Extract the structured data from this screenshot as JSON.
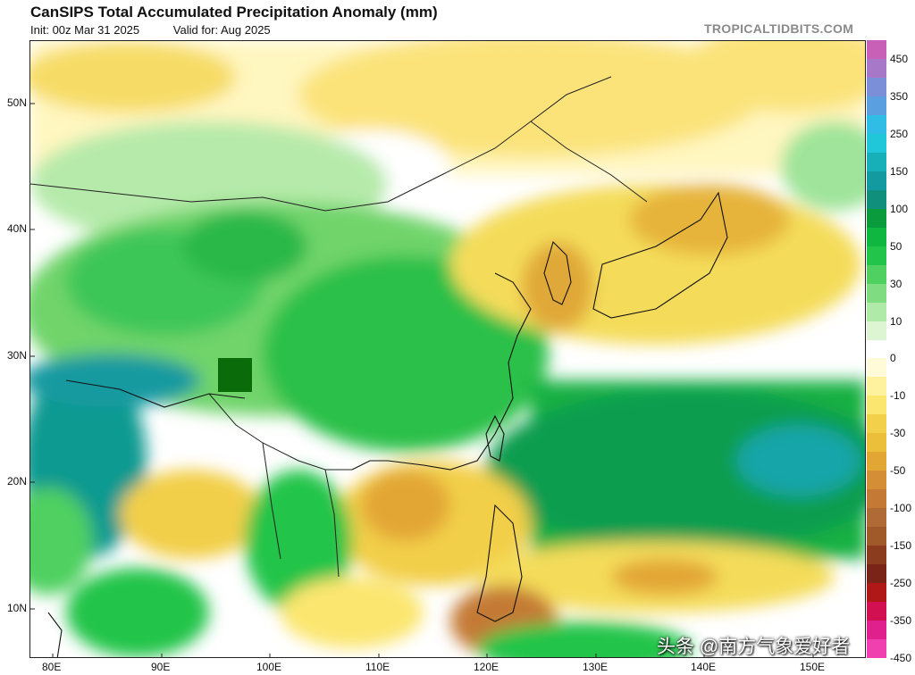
{
  "header": {
    "title": "CanSIPS Total Accumulated Precipitation Anomaly (mm)",
    "init": "Init: 00z Mar 31 2025",
    "valid": "Valid for: Aug 2025",
    "brand": "TROPICALTIDBITS.COM"
  },
  "axes": {
    "latitudes": [
      "50N",
      "40N",
      "30N",
      "20N",
      "10N"
    ],
    "longitudes": [
      "80E",
      "90E",
      "100E",
      "110E",
      "120E",
      "130E",
      "140E",
      "150E"
    ]
  },
  "colorbar": {
    "levels": [
      "450",
      "400",
      "350",
      "300",
      "250",
      "200",
      "150",
      "125",
      "100",
      "75",
      "50",
      "40",
      "30",
      "20",
      "10",
      "5",
      "0",
      "-5",
      "-10",
      "-20",
      "-30",
      "-40",
      "-50",
      "-75",
      "-100",
      "-125",
      "-150",
      "-200",
      "-250",
      "-300",
      "-350",
      "-400",
      "-450"
    ],
    "labels": [
      "450",
      "350",
      "250",
      "150",
      "100",
      "50",
      "30",
      "10",
      "0",
      "-10",
      "-30",
      "-50",
      "-100",
      "-150",
      "-250",
      "-350",
      "-450"
    ],
    "colors": [
      "#c860b8",
      "#a878c8",
      "#7a8fd8",
      "#5aa0e0",
      "#2fbde6",
      "#20c7d8",
      "#17b0b8",
      "#139aa0",
      "#108f7c",
      "#0a9b3c",
      "#0fb63f",
      "#22c44a",
      "#4fd060",
      "#80dc80",
      "#b0eaa8",
      "#ddf5d2",
      "#ffffff",
      "#fffbd8",
      "#fff29e",
      "#fbe670",
      "#f2d04a",
      "#ecbf3a",
      "#e2a634",
      "#d48e35",
      "#c47a35",
      "#b06a35",
      "#a05a2a",
      "#8c3c1e",
      "#7a2418",
      "#b01818",
      "#d01050",
      "#e0208c",
      "#f040b0"
    ]
  },
  "watermark": "头条 @南方气象爱好者"
}
